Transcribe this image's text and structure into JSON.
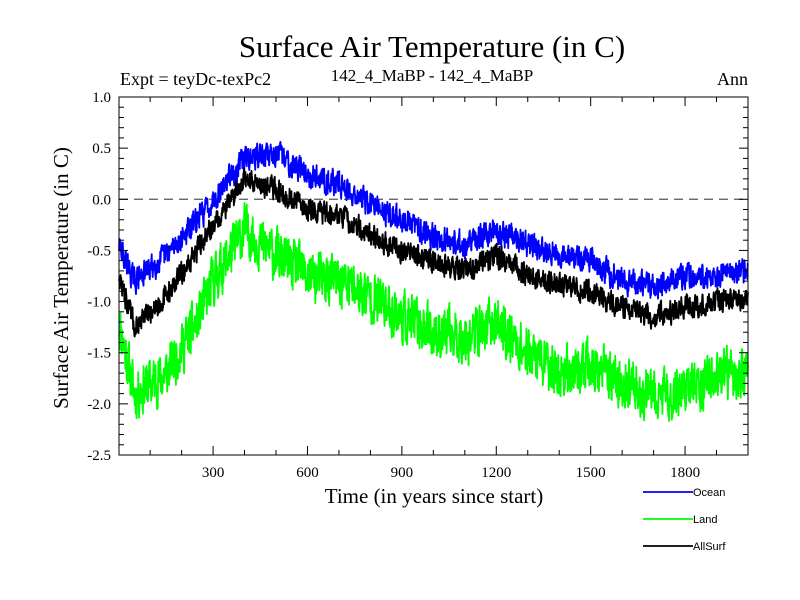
{
  "chart_data": {
    "type": "line",
    "title": "Surface Air Temperature (in C)",
    "subtitle_left": "Expt = teyDc-texPc2",
    "subtitle_center": "142_4_MaBP - 142_4_MaBP",
    "subtitle_right": "Ann",
    "xlabel": "Time (in years since start)",
    "ylabel": "Surface Air Temperature (in C)",
    "xlim": [
      1,
      2000
    ],
    "ylim": [
      -2.5,
      1.0
    ],
    "x_ticks": [
      300,
      600,
      900,
      1200,
      1500,
      1800
    ],
    "x_tick_labels": [
      "300",
      "600",
      "900",
      "1200",
      "1500",
      "1800"
    ],
    "y_ticks": [
      -2.5,
      -2.0,
      -1.5,
      -1.0,
      -0.5,
      0.0,
      0.5,
      1.0
    ],
    "y_tick_labels": [
      "-2.5",
      "-2.0",
      "-1.5",
      "-1.0",
      "-0.5",
      "0.0",
      "0.5",
      "1.0"
    ],
    "reference_line": 0.0,
    "n_points": 2000,
    "series": [
      {
        "name": "Ocean",
        "color": "#0000ff",
        "noise": 0.11,
        "trend_x": [
          1,
          50,
          150,
          250,
          300,
          400,
          500,
          600,
          700,
          800,
          900,
          1000,
          1100,
          1200,
          1300,
          1400,
          1500,
          1600,
          1700,
          1800,
          1900,
          2000
        ],
        "trend_y": [
          -0.45,
          -0.8,
          -0.55,
          -0.2,
          0.0,
          0.4,
          0.45,
          0.25,
          0.15,
          -0.05,
          -0.2,
          -0.35,
          -0.45,
          -0.3,
          -0.45,
          -0.55,
          -0.6,
          -0.8,
          -0.85,
          -0.75,
          -0.75,
          -0.7
        ]
      },
      {
        "name": "Land",
        "color": "#00ff00",
        "noise": 0.22,
        "trend_x": [
          1,
          50,
          150,
          250,
          300,
          400,
          500,
          600,
          700,
          800,
          900,
          1000,
          1100,
          1200,
          1300,
          1400,
          1500,
          1600,
          1700,
          1800,
          1900,
          2000
        ],
        "trend_y": [
          -1.2,
          -1.9,
          -1.7,
          -1.2,
          -0.8,
          -0.3,
          -0.55,
          -0.75,
          -0.8,
          -0.95,
          -1.15,
          -1.3,
          -1.35,
          -1.2,
          -1.5,
          -1.7,
          -1.65,
          -1.8,
          -1.95,
          -1.85,
          -1.75,
          -1.7
        ]
      },
      {
        "name": "AllSurf",
        "color": "#000000",
        "noise": 0.1,
        "trend_x": [
          1,
          50,
          150,
          250,
          300,
          400,
          500,
          600,
          700,
          800,
          900,
          1000,
          1100,
          1200,
          1300,
          1400,
          1500,
          1600,
          1700,
          1800,
          1900,
          2000
        ],
        "trend_y": [
          -0.75,
          -1.25,
          -0.95,
          -0.5,
          -0.25,
          0.2,
          0.1,
          -0.1,
          -0.15,
          -0.35,
          -0.5,
          -0.6,
          -0.7,
          -0.55,
          -0.75,
          -0.85,
          -0.9,
          -1.05,
          -1.15,
          -1.05,
          -1.0,
          -0.95
        ]
      }
    ]
  }
}
